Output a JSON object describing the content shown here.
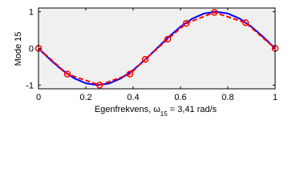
{
  "chart_data": {
    "type": "line",
    "ylabel": "Mode 15",
    "xlabel": {
      "prefix": "Egenfrekvens, ω",
      "sub": "15",
      "suffix": " = 3,41 rad/s"
    },
    "xlim": [
      0,
      1
    ],
    "xticks": [
      0,
      0.2,
      0.4,
      0.6,
      0.8,
      1
    ],
    "ylim": [
      -1.1,
      1.1
    ],
    "yticks": [
      -1,
      0,
      1
    ],
    "background": "#f0f0f0",
    "series": [
      {
        "color": "#0000ff",
        "style": "solid",
        "x": [
          0,
          0.05,
          0.1,
          0.15,
          0.2,
          0.25,
          0.3,
          0.35,
          0.4,
          0.45,
          0.5,
          0.55,
          0.6,
          0.65,
          0.7,
          0.75,
          0.8,
          0.85,
          0.9,
          0.95,
          1
        ],
        "values": [
          0,
          -0.31,
          -0.59,
          -0.81,
          -0.95,
          -1,
          -0.95,
          -0.81,
          -0.59,
          -0.31,
          0,
          0.31,
          0.59,
          0.81,
          0.95,
          1,
          0.95,
          0.81,
          0.59,
          0.31,
          0
        ]
      },
      {
        "color": "#ff0000",
        "style": "dashed",
        "markers": true,
        "x": [
          0,
          0.122,
          0.258,
          0.386,
          0.451,
          0.546,
          0.624,
          0.743,
          0.875,
          1
        ],
        "values": [
          0,
          -0.7,
          -1,
          -0.7,
          -0.3,
          0.25,
          0.68,
          0.98,
          0.7,
          0
        ]
      }
    ]
  }
}
